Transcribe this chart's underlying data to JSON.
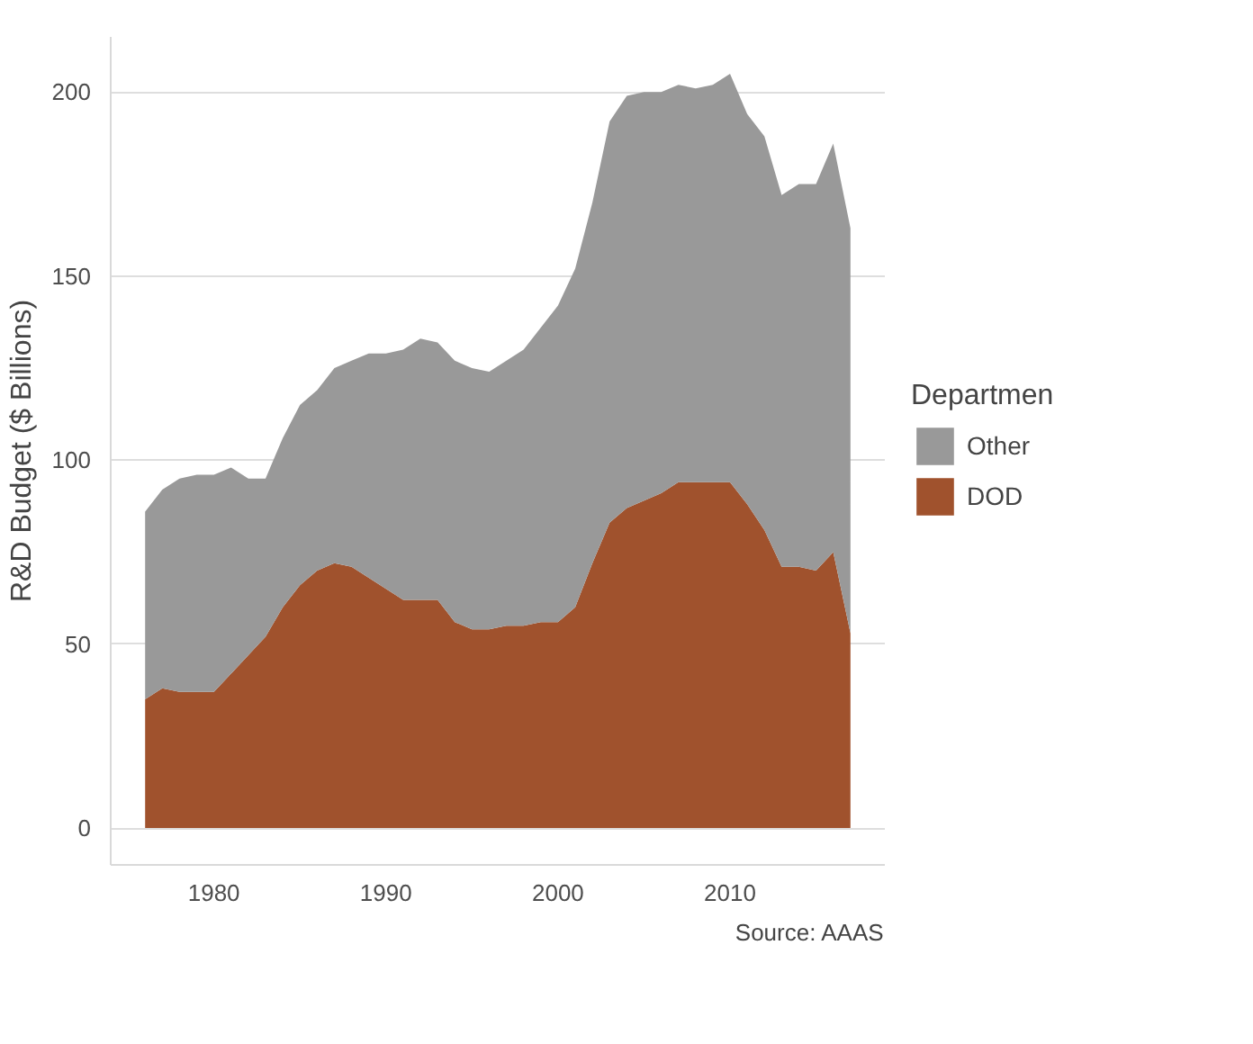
{
  "chart_data": {
    "type": "area",
    "stacked": true,
    "ylabel": "R&D Budget ($ Billions)",
    "legend_title": "Departmen",
    "legend": "right",
    "grid": "y",
    "x": [
      1976,
      1977,
      1978,
      1979,
      1980,
      1981,
      1982,
      1983,
      1984,
      1985,
      1986,
      1987,
      1988,
      1989,
      1990,
      1991,
      1992,
      1993,
      1994,
      1995,
      1996,
      1997,
      1998,
      1999,
      2000,
      2001,
      2002,
      2003,
      2004,
      2005,
      2006,
      2007,
      2008,
      2009,
      2010,
      2011,
      2012,
      2013,
      2014,
      2015,
      2016,
      2017
    ],
    "series": [
      {
        "name": "DOD",
        "color": "#a0522d",
        "values": [
          35,
          38,
          37,
          37,
          37,
          42,
          47,
          52,
          60,
          66,
          70,
          72,
          71,
          68,
          65,
          62,
          62,
          62,
          56,
          54,
          54,
          55,
          55,
          56,
          56,
          60,
          72,
          83,
          87,
          89,
          91,
          94,
          94,
          94,
          94,
          88,
          81,
          71,
          71,
          70,
          75,
          53
        ]
      },
      {
        "name": "Other",
        "color": "#999999",
        "values": [
          51,
          54,
          58,
          59,
          59,
          56,
          48,
          43,
          46,
          49,
          49,
          53,
          56,
          61,
          64,
          68,
          71,
          70,
          71,
          71,
          70,
          72,
          75,
          80,
          86,
          92,
          98,
          109,
          112,
          111,
          109,
          108,
          107,
          108,
          111,
          106,
          107,
          101,
          104,
          105,
          111,
          110
        ]
      }
    ],
    "xlim": [
      1974,
      2019
    ],
    "xticks": [
      1980,
      1990,
      2000,
      2010
    ],
    "ylim": [
      -10,
      215
    ],
    "yticks": [
      0,
      50,
      100,
      150,
      200
    ],
    "annotations": [
      "Source: AAAS"
    ]
  }
}
